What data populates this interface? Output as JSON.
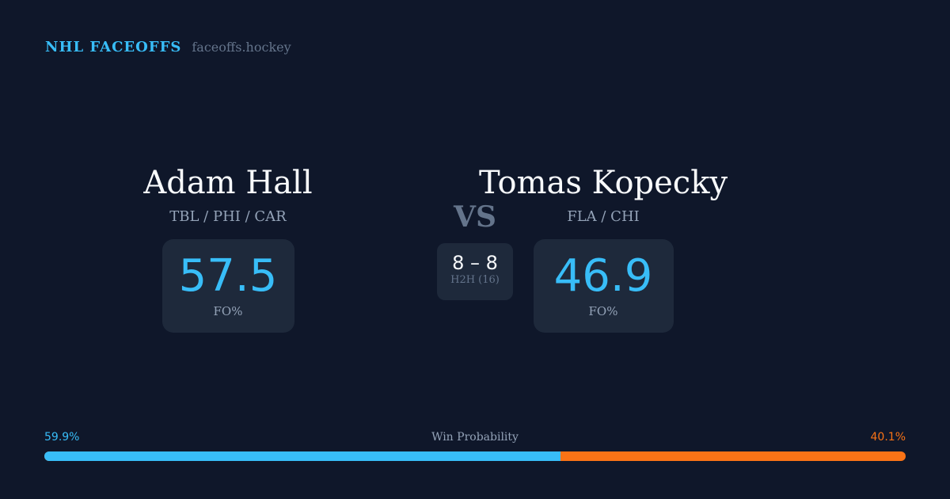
{
  "brand": {
    "name": "NHL FACEOFFS",
    "url": "faceoffs.hockey"
  },
  "player1": {
    "name": "Adam Hall",
    "teams": "TBL / PHI / CAR",
    "fo": "57.5",
    "fo_label": "FO%"
  },
  "player2": {
    "name": "Tomas Kopecky",
    "teams": "FLA / CHI",
    "fo": "46.9",
    "fo_label": "FO%"
  },
  "vs": "VS",
  "h2h": {
    "record": "8 – 8",
    "label": "H2H (16)"
  },
  "win_probability": {
    "label": "Win Probability",
    "left": "59.9%",
    "right": "40.1%",
    "left_value": 59.9,
    "left_color": "#38bdf8",
    "right_color": "#f97316"
  }
}
